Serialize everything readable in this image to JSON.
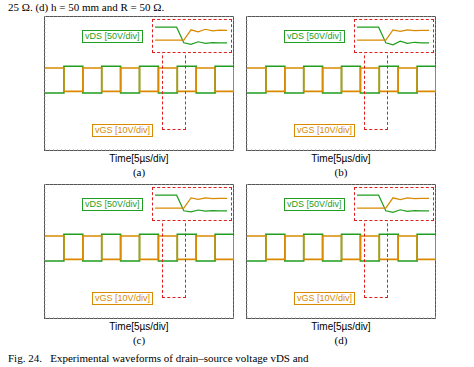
{
  "caption_top": "25 Ω. (d) h = 50 mm and R = 50 Ω.",
  "caption_bottom": "Fig. 24.   Experimental waveforms of drain–source voltage vDS and",
  "chart_data": [
    {
      "type": "line",
      "title": "(a)",
      "xlabel": "Time[5µs/div]",
      "xlim": [
        0,
        50
      ],
      "xticks": [
        0,
        5,
        10,
        15,
        20,
        25,
        30,
        35,
        40,
        45,
        50
      ],
      "ylim": [
        -4,
        4
      ],
      "yticks": [
        -4,
        -3,
        -2,
        -1,
        0,
        1,
        2,
        3,
        4
      ],
      "grid": true,
      "tick_labels": false,
      "x": [
        0,
        5,
        10,
        15,
        20,
        25,
        30,
        35,
        40,
        45,
        50
      ],
      "series": [
        {
          "name": "vDS [50V/div]",
          "color": "#1f9e1f",
          "line_style": "step",
          "values": [
            -0.6,
            1,
            -0.6,
            1,
            -0.6,
            1,
            -0.6,
            1,
            -0.6,
            1,
            -0.6
          ]
        },
        {
          "name": "vGS [10V/div]",
          "color": "#d98a00",
          "line_style": "step",
          "values": [
            0.9,
            -0.5,
            0.9,
            -0.5,
            0.9,
            -0.5,
            0.9,
            -0.5,
            0.9,
            -0.5,
            0.9
          ]
        }
      ],
      "inset": {
        "xlim": [
          0,
          10
        ],
        "ylim": [
          -2,
          3
        ],
        "x": [
          0,
          1,
          2,
          3,
          4,
          5,
          6,
          7,
          8,
          9,
          10
        ],
        "series": [
          {
            "name": "vDS [50V/div]",
            "color": "#1f9e1f",
            "values": [
              2,
              2,
              2,
              2,
              -1,
              -1.3,
              -0.8,
              -1.1,
              -0.95,
              -1,
              -1
            ]
          },
          {
            "name": "vGS [10V/div]",
            "color": "#d98a00",
            "values": [
              -0.5,
              -0.5,
              -0.5,
              -0.5,
              -0.5,
              1.5,
              1.1,
              1.6,
              1.3,
              1.45,
              1.4
            ]
          }
        ]
      }
    },
    {
      "type": "line",
      "title": "(b)",
      "xlabel": "Time[5µs/div]",
      "xlim": [
        0,
        50
      ],
      "xticks": [
        0,
        5,
        10,
        15,
        20,
        25,
        30,
        35,
        40,
        45,
        50
      ],
      "ylim": [
        -4,
        4
      ],
      "yticks": [
        -4,
        -3,
        -2,
        -1,
        0,
        1,
        2,
        3,
        4
      ],
      "grid": true,
      "tick_labels": false,
      "x": [
        0,
        5,
        10,
        15,
        20,
        25,
        30,
        35,
        40,
        45,
        50
      ],
      "series": [
        {
          "name": "vDS [50V/div]",
          "color": "#1f9e1f",
          "line_style": "step",
          "values": [
            -0.6,
            1,
            -0.6,
            1,
            -0.6,
            1,
            -0.6,
            1,
            -0.6,
            1,
            -0.6
          ]
        },
        {
          "name": "vGS [10V/div]",
          "color": "#d98a00",
          "line_style": "step",
          "values": [
            0.9,
            -0.5,
            0.9,
            -0.5,
            0.9,
            -0.5,
            0.9,
            -0.5,
            0.9,
            -0.5,
            0.9
          ]
        }
      ],
      "inset": {
        "xlim": [
          0,
          10
        ],
        "ylim": [
          -2,
          3
        ],
        "x": [
          0,
          1,
          2,
          3,
          4,
          5,
          6,
          7,
          8,
          9,
          10
        ],
        "series": [
          {
            "name": "vDS [50V/div]",
            "color": "#1f9e1f",
            "values": [
              2,
              2,
              2,
              2,
              -1,
              -1.4,
              -0.7,
              -1.1,
              -0.9,
              -1,
              -1
            ]
          },
          {
            "name": "vGS [10V/div]",
            "color": "#d98a00",
            "values": [
              -0.5,
              -0.5,
              -0.5,
              -0.5,
              -0.5,
              1.5,
              1.2,
              1.5,
              1.35,
              1.4,
              1.4
            ]
          }
        ]
      }
    },
    {
      "type": "line",
      "title": "(c)",
      "xlabel": "Time[5µs/div]",
      "xlim": [
        0,
        50
      ],
      "xticks": [
        0,
        5,
        10,
        15,
        20,
        25,
        30,
        35,
        40,
        45,
        50
      ],
      "ylim": [
        -4,
        4
      ],
      "yticks": [
        -4,
        -3,
        -2,
        -1,
        0,
        1,
        2,
        3,
        4
      ],
      "grid": true,
      "tick_labels": false,
      "x": [
        0,
        5,
        10,
        15,
        20,
        25,
        30,
        35,
        40,
        45,
        50
      ],
      "series": [
        {
          "name": "vDS [50V/div]",
          "color": "#1f9e1f",
          "line_style": "step",
          "values": [
            -0.6,
            1,
            -0.6,
            1,
            -0.6,
            1,
            -0.6,
            1,
            -0.6,
            1,
            -0.6
          ]
        },
        {
          "name": "vGS [10V/div]",
          "color": "#d98a00",
          "line_style": "step",
          "values": [
            0.9,
            -0.5,
            0.9,
            -0.5,
            0.9,
            -0.5,
            0.9,
            -0.5,
            0.9,
            -0.5,
            0.9
          ]
        }
      ],
      "inset": {
        "xlim": [
          0,
          10
        ],
        "ylim": [
          -2,
          3
        ],
        "x": [
          0,
          1,
          2,
          3,
          4,
          5,
          6,
          7,
          8,
          9,
          10
        ],
        "series": [
          {
            "name": "vDS [50V/div]",
            "color": "#1f9e1f",
            "values": [
              2,
              2,
              2,
              2,
              -1,
              -1.2,
              -0.85,
              -1.05,
              -0.95,
              -1,
              -1
            ]
          },
          {
            "name": "vGS [10V/div]",
            "color": "#d98a00",
            "values": [
              -0.5,
              -0.5,
              -0.5,
              -0.5,
              -0.5,
              1.5,
              1.2,
              1.5,
              1.35,
              1.4,
              1.4
            ]
          }
        ]
      }
    },
    {
      "type": "line",
      "title": "(d)",
      "xlabel": "Time[5µs/div]",
      "xlim": [
        0,
        50
      ],
      "xticks": [
        0,
        5,
        10,
        15,
        20,
        25,
        30,
        35,
        40,
        45,
        50
      ],
      "ylim": [
        -4,
        4
      ],
      "yticks": [
        -4,
        -3,
        -2,
        -1,
        0,
        1,
        2,
        3,
        4
      ],
      "grid": true,
      "tick_labels": false,
      "x": [
        0,
        5,
        10,
        15,
        20,
        25,
        30,
        35,
        40,
        45,
        50
      ],
      "series": [
        {
          "name": "vDS [50V/div]",
          "color": "#1f9e1f",
          "line_style": "step",
          "values": [
            -0.6,
            1,
            -0.6,
            1,
            -0.6,
            1,
            -0.6,
            1,
            -0.6,
            1,
            -0.6
          ]
        },
        {
          "name": "vGS [10V/div]",
          "color": "#d98a00",
          "line_style": "step",
          "values": [
            0.9,
            -0.5,
            0.9,
            -0.5,
            0.9,
            -0.5,
            0.9,
            -0.5,
            0.9,
            -0.5,
            0.9
          ]
        }
      ],
      "inset": {
        "xlim": [
          0,
          10
        ],
        "ylim": [
          -2,
          3
        ],
        "x": [
          0,
          1,
          2,
          3,
          4,
          5,
          6,
          7,
          8,
          9,
          10
        ],
        "series": [
          {
            "name": "vDS [50V/div]",
            "color": "#1f9e1f",
            "values": [
              2,
              2,
              2,
              2,
              -1,
              -1.3,
              -0.8,
              -1.1,
              -0.95,
              -1,
              -1
            ]
          },
          {
            "name": "vGS [10V/div]",
            "color": "#d98a00",
            "values": [
              -0.5,
              -0.5,
              -0.5,
              -0.5,
              -0.5,
              1.5,
              1.15,
              1.5,
              1.35,
              1.4,
              1.4
            ]
          }
        ]
      }
    }
  ]
}
